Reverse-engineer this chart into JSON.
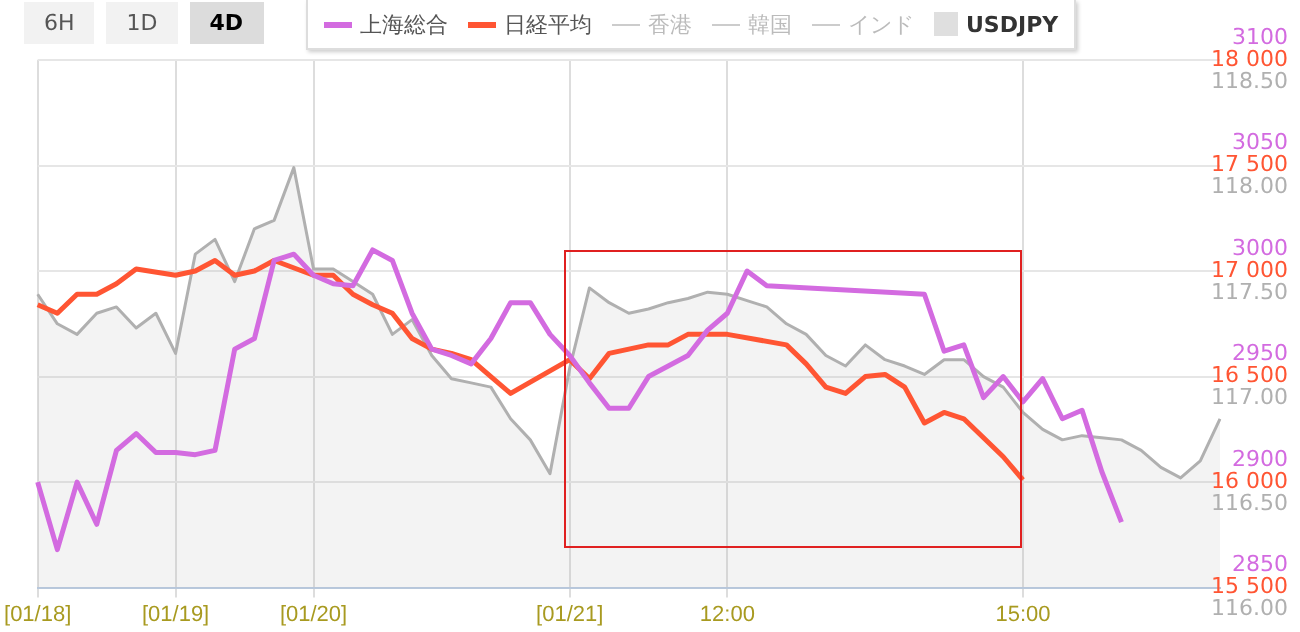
{
  "chart_data": {
    "type": "line",
    "annotations": [
      "6H",
      "1D",
      "4D"
    ],
    "categories": [
      "[01/18]",
      null,
      null,
      null,
      null,
      null,
      null,
      "[01/19]",
      null,
      null,
      null,
      null,
      null,
      null,
      "[01/20]",
      null,
      null,
      null,
      null,
      null,
      null,
      null,
      null,
      null,
      null,
      null,
      null,
      "[01/21]",
      null,
      null,
      null,
      null,
      null,
      null,
      null,
      "12:00",
      null,
      null,
      null,
      null,
      null,
      null,
      null,
      null,
      null,
      null,
      null,
      null,
      null,
      null,
      "15:00",
      null,
      null,
      null,
      null,
      null,
      null,
      null,
      null,
      null,
      null
    ],
    "series": [
      {
        "name": "上海総合",
        "type": "line",
        "color": "#d36be0",
        "values": [
          2900,
          2868,
          2900,
          2880,
          2915,
          2923,
          2914,
          2914,
          2913,
          2915,
          2963,
          2968,
          3005,
          3008,
          2998,
          2994,
          2993,
          3010,
          3005,
          2980,
          2963,
          2960,
          2956,
          2968,
          2985,
          2985,
          2970,
          2960,
          2947,
          2935,
          2935,
          2950,
          2955,
          2960,
          2972,
          2980,
          3000,
          2993,
          null,
          null,
          null,
          null,
          null,
          null,
          null,
          2989,
          2962,
          2965,
          2940,
          2950,
          2938,
          2949,
          2930,
          2934,
          2905,
          2881,
          null,
          null,
          null,
          null,
          null
        ]
      },
      {
        "name": "日経平均",
        "type": "line",
        "axis": "y2",
        "color": "#ff5533",
        "values": [
          16840,
          16800,
          16890,
          16890,
          16940,
          17010,
          null,
          16980,
          17000,
          17050,
          16980,
          17000,
          17050,
          null,
          16980,
          16980,
          16890,
          16840,
          16800,
          16680,
          16630,
          16610,
          16580,
          16500,
          16420,
          null,
          null,
          16580,
          16490,
          16610,
          16630,
          16650,
          16650,
          16700,
          16700,
          16700,
          null,
          null,
          16650,
          16560,
          16450,
          16420,
          16500,
          16510,
          16450,
          16280,
          16330,
          16300,
          16210,
          16120,
          16010,
          null,
          null,
          null,
          null,
          null,
          null,
          null,
          null,
          null,
          null
        ]
      },
      {
        "name": "香港",
        "type": "line",
        "color": "#cccccc",
        "values": [
          null,
          null,
          null,
          null,
          null,
          null,
          null,
          null,
          null,
          null,
          null,
          null,
          null,
          null,
          null,
          null,
          null,
          null,
          null,
          null,
          null,
          null,
          null,
          null,
          null,
          null,
          null,
          null,
          null,
          null,
          null,
          null,
          null,
          null,
          null,
          null,
          null,
          null,
          null,
          null,
          null,
          null,
          null,
          null,
          null,
          null,
          null,
          null,
          null,
          null,
          null,
          null,
          null,
          null,
          null,
          null,
          null,
          null,
          null,
          null,
          null
        ]
      },
      {
        "name": "韓国",
        "type": "line",
        "color": "#cccccc",
        "values": [
          null,
          null,
          null,
          null,
          null,
          null,
          null,
          null,
          null,
          null,
          null,
          null,
          null,
          null,
          null,
          null,
          null,
          null,
          null,
          null,
          null,
          null,
          null,
          null,
          null,
          null,
          null,
          null,
          null,
          null,
          null,
          null,
          null,
          null,
          null,
          null,
          null,
          null,
          null,
          null,
          null,
          null,
          null,
          null,
          null,
          null,
          null,
          null,
          null,
          null,
          null,
          null,
          null,
          null,
          null,
          null,
          null,
          null,
          null,
          null,
          null
        ]
      },
      {
        "name": "インド",
        "type": "line",
        "color": "#cccccc",
        "values": [
          null,
          null,
          null,
          null,
          null,
          null,
          null,
          null,
          null,
          null,
          null,
          null,
          null,
          null,
          null,
          null,
          null,
          null,
          null,
          null,
          null,
          null,
          null,
          null,
          null,
          null,
          null,
          null,
          null,
          null,
          null,
          null,
          null,
          null,
          null,
          null,
          null,
          null,
          null,
          null,
          null,
          null,
          null,
          null,
          null,
          null,
          null,
          null,
          null,
          null,
          null,
          null,
          null,
          null,
          null,
          null,
          null,
          null,
          null,
          null,
          null
        ]
      },
      {
        "name": "USDJPY",
        "type": "area",
        "axis": "y3",
        "color": "#b0b0b0",
        "values": [
          117.39,
          117.25,
          117.2,
          117.3,
          117.33,
          117.23,
          117.3,
          117.11,
          117.58,
          117.65,
          117.45,
          117.7,
          117.74,
          117.99,
          117.51,
          117.51,
          117.45,
          117.39,
          117.2,
          117.27,
          117.1,
          116.99,
          116.97,
          116.95,
          116.8,
          116.7,
          116.54,
          117.04,
          117.42,
          117.35,
          117.3,
          117.32,
          117.35,
          117.37,
          117.4,
          117.39,
          117.36,
          117.33,
          117.25,
          117.2,
          117.1,
          117.05,
          117.15,
          117.08,
          117.05,
          117.01,
          117.08,
          117.08,
          117.0,
          116.95,
          116.83,
          116.75,
          116.7,
          116.72,
          116.71,
          116.7,
          116.65,
          116.57,
          116.52,
          116.6,
          116.8
        ]
      }
    ],
    "ylim": [
      2850,
      3100
    ],
    "yticks": [
      2850,
      2900,
      2950,
      3000,
      3050,
      3100
    ],
    "y2lim": [
      15500,
      18000
    ],
    "y2ticks": [
      {
        "value": 15500,
        "label": "15 500"
      },
      {
        "value": 16000,
        "label": "16 000"
      },
      {
        "value": 16500,
        "label": "16 500"
      },
      {
        "value": 17000,
        "label": "17 000"
      },
      {
        "value": 17500,
        "label": "17 500"
      },
      {
        "value": 18000,
        "label": "18 000"
      }
    ],
    "y3lim": [
      116,
      118.5
    ],
    "y3ticks": [
      {
        "value": 116,
        "label": "116.00"
      },
      {
        "value": 116.5,
        "label": "116.50"
      },
      {
        "value": 117,
        "label": "117.00"
      },
      {
        "value": 117.5,
        "label": "117.50"
      },
      {
        "value": 118,
        "label": "118.00"
      },
      {
        "value": 118.5,
        "label": "118.50"
      }
    ],
    "grid": true,
    "legend": "top",
    "marker": "none",
    "line_style": "solid"
  }
}
